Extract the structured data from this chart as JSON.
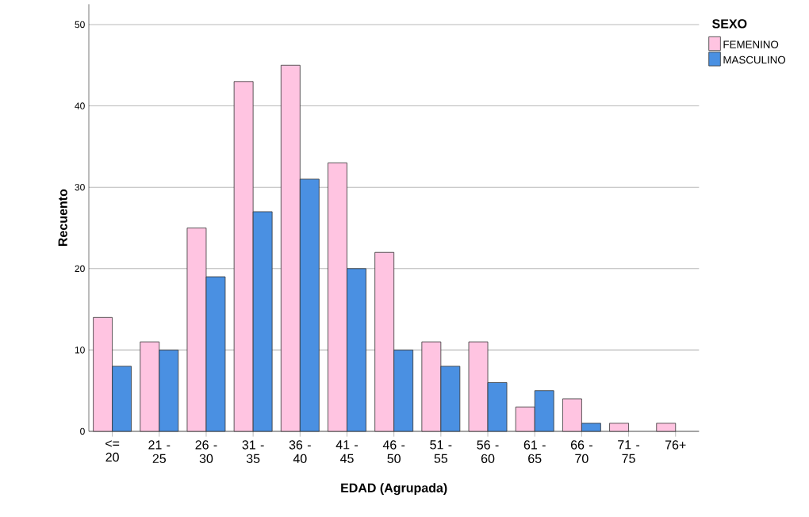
{
  "chart_data": {
    "type": "bar",
    "xlabel": "EDAD (Agrupada)",
    "ylabel": "Recuento",
    "legend_title": "SEXO",
    "categories": [
      "<= 20",
      "21 - 25",
      "26 - 30",
      "31 - 35",
      "36 - 40",
      "41 - 45",
      "46 - 50",
      "51 - 55",
      "56 - 60",
      "61 - 65",
      "66 - 70",
      "71 - 75",
      "76+"
    ],
    "series": [
      {
        "name": "FEMENINO",
        "color": "#ffc4e1",
        "values": [
          14,
          11,
          25,
          43,
          45,
          33,
          22,
          11,
          11,
          3,
          4,
          1,
          1
        ]
      },
      {
        "name": "MASCULINO",
        "color": "#4a90e2",
        "values": [
          8,
          10,
          19,
          27,
          31,
          20,
          10,
          8,
          6,
          5,
          1,
          null,
          null
        ]
      }
    ],
    "ylim": [
      0,
      52.5
    ],
    "yticks": [
      0,
      10,
      20,
      30,
      40,
      50
    ],
    "grid": "y",
    "legend": "top right"
  }
}
